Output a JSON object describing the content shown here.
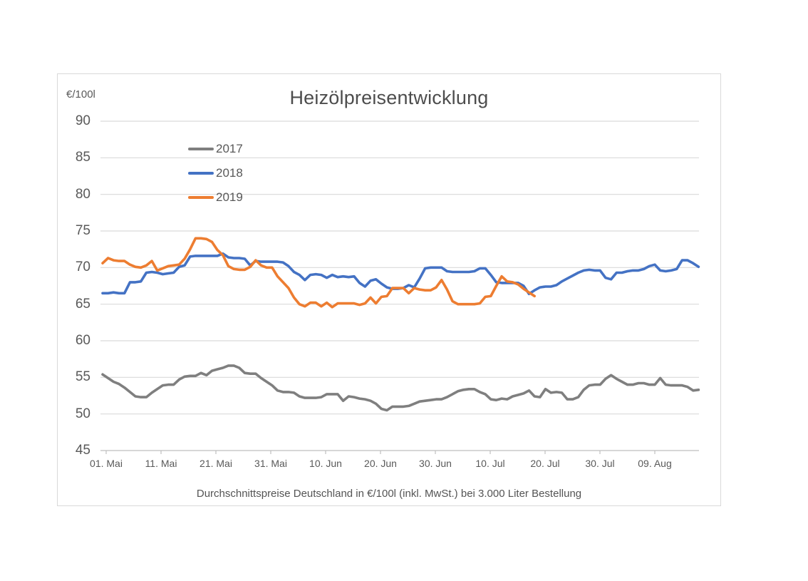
{
  "chart": {
    "y_axis_unit_label": "€/100l",
    "caption": "Durchschnittspreise Deutschland in €/100l (inkl. MwSt.) bei 3.000 Liter Bestellung",
    "background_color": "#ffffff",
    "gridline_color": "#d9d9d9",
    "axis_line_color": "#bfbfbf",
    "text_color": "#595959"
  },
  "chart_data": {
    "type": "line",
    "title": "Heizölpreisentwicklung",
    "ylabel": "€/100l",
    "ylim": [
      45,
      90
    ],
    "yticks": [
      45,
      50,
      55,
      60,
      65,
      70,
      75,
      80,
      85,
      90
    ],
    "grid": true,
    "legend_position": "upper-left-inside",
    "x_unit": "days since 01. Mai",
    "x_tick_labels": [
      "01. Mai",
      "11. Mai",
      "21. Mai",
      "31. Mai",
      "10. Jun",
      "20. Jun",
      "30. Jun",
      "10. Jul",
      "20. Jul",
      "30. Jul",
      "09. Aug"
    ],
    "x_tick_days": [
      0,
      10,
      20,
      30,
      40,
      50,
      60,
      70,
      80,
      90,
      100
    ],
    "series": [
      {
        "name": "2017",
        "color": "#7f7f7f",
        "start_day": 0,
        "values": [
          55.4,
          54.9,
          54.4,
          54.1,
          53.6,
          53.0,
          52.4,
          52.3,
          52.3,
          52.9,
          53.4,
          53.9,
          54.0,
          54.0,
          54.7,
          55.1,
          55.2,
          55.2,
          55.6,
          55.3,
          55.9,
          56.1,
          56.3,
          56.6,
          56.6,
          56.3,
          55.6,
          55.5,
          55.5,
          54.9,
          54.4,
          53.9,
          53.2,
          53.0,
          53.0,
          52.9,
          52.4,
          52.2,
          52.2,
          52.2,
          52.3,
          52.7,
          52.7,
          52.7,
          51.8,
          52.4,
          52.3,
          52.1,
          52.0,
          51.8,
          51.4,
          50.7,
          50.5,
          51.0,
          51.0,
          51.0,
          51.1,
          51.4,
          51.7,
          51.8,
          51.9,
          52.0,
          52.0,
          52.3,
          52.7,
          53.1,
          53.3,
          53.4,
          53.4,
          53.0,
          52.7,
          52.0,
          51.9,
          52.1,
          52.0,
          52.4,
          52.6,
          52.8,
          53.2,
          52.4,
          52.3,
          53.4,
          52.9,
          53.0,
          52.9,
          52.0,
          52.0,
          52.3,
          53.3,
          53.9,
          54.0,
          54.0,
          54.8,
          55.3,
          54.8,
          54.4,
          54.0,
          54.0,
          54.2,
          54.2,
          54.0,
          54.0,
          54.9,
          54.0,
          53.9,
          53.9,
          53.9,
          53.7,
          53.2,
          53.3
        ]
      },
      {
        "name": "2018",
        "color": "#4472c4",
        "start_day": 0,
        "values": [
          66.5,
          66.5,
          66.6,
          66.5,
          66.5,
          68.0,
          68.0,
          68.1,
          69.3,
          69.4,
          69.3,
          69.1,
          69.2,
          69.3,
          70.1,
          70.3,
          71.5,
          71.6,
          71.6,
          71.6,
          71.6,
          71.6,
          71.9,
          71.4,
          71.3,
          71.3,
          71.2,
          70.3,
          70.9,
          70.8,
          70.8,
          70.8,
          70.8,
          70.7,
          70.2,
          69.4,
          69.0,
          68.3,
          69.0,
          69.1,
          69.0,
          68.6,
          69.0,
          68.7,
          68.8,
          68.7,
          68.8,
          67.9,
          67.4,
          68.2,
          68.4,
          67.8,
          67.3,
          67.1,
          67.1,
          67.2,
          67.6,
          67.3,
          68.5,
          69.9,
          70.0,
          70.0,
          70.0,
          69.5,
          69.4,
          69.4,
          69.4,
          69.4,
          69.5,
          69.9,
          69.9,
          69.0,
          68.0,
          67.9,
          67.9,
          67.9,
          67.9,
          67.5,
          66.4,
          66.9,
          67.3,
          67.4,
          67.4,
          67.6,
          68.1,
          68.5,
          68.9,
          69.3,
          69.6,
          69.7,
          69.6,
          69.6,
          68.6,
          68.4,
          69.3,
          69.3,
          69.5,
          69.6,
          69.6,
          69.8,
          70.2,
          70.4,
          69.6,
          69.5,
          69.6,
          69.8,
          71.0,
          71.0,
          70.6,
          70.1
        ]
      },
      {
        "name": "2019",
        "color": "#ed7d31",
        "start_day": 0,
        "values": [
          70.6,
          71.3,
          71.0,
          70.9,
          70.9,
          70.4,
          70.1,
          70.0,
          70.3,
          70.9,
          69.6,
          69.9,
          70.2,
          70.3,
          70.4,
          71.2,
          72.5,
          74.0,
          74.0,
          73.9,
          73.5,
          72.4,
          71.7,
          70.2,
          69.8,
          69.7,
          69.7,
          70.1,
          71.0,
          70.3,
          70.0,
          70.0,
          68.8,
          68.0,
          67.2,
          65.9,
          65.0,
          64.7,
          65.2,
          65.2,
          64.7,
          65.2,
          64.6,
          65.1,
          65.1,
          65.1,
          65.1,
          64.9,
          65.1,
          65.9,
          65.1,
          66.0,
          66.1,
          67.2,
          67.2,
          67.2,
          66.5,
          67.2,
          67.0,
          66.9,
          66.9,
          67.3,
          68.3,
          67.0,
          65.4,
          65.0,
          65.0,
          65.0,
          65.0,
          65.1,
          66.0,
          66.1,
          67.5,
          68.8,
          68.1,
          68.0,
          67.7,
          67.1,
          66.6,
          66.1
        ]
      }
    ]
  }
}
